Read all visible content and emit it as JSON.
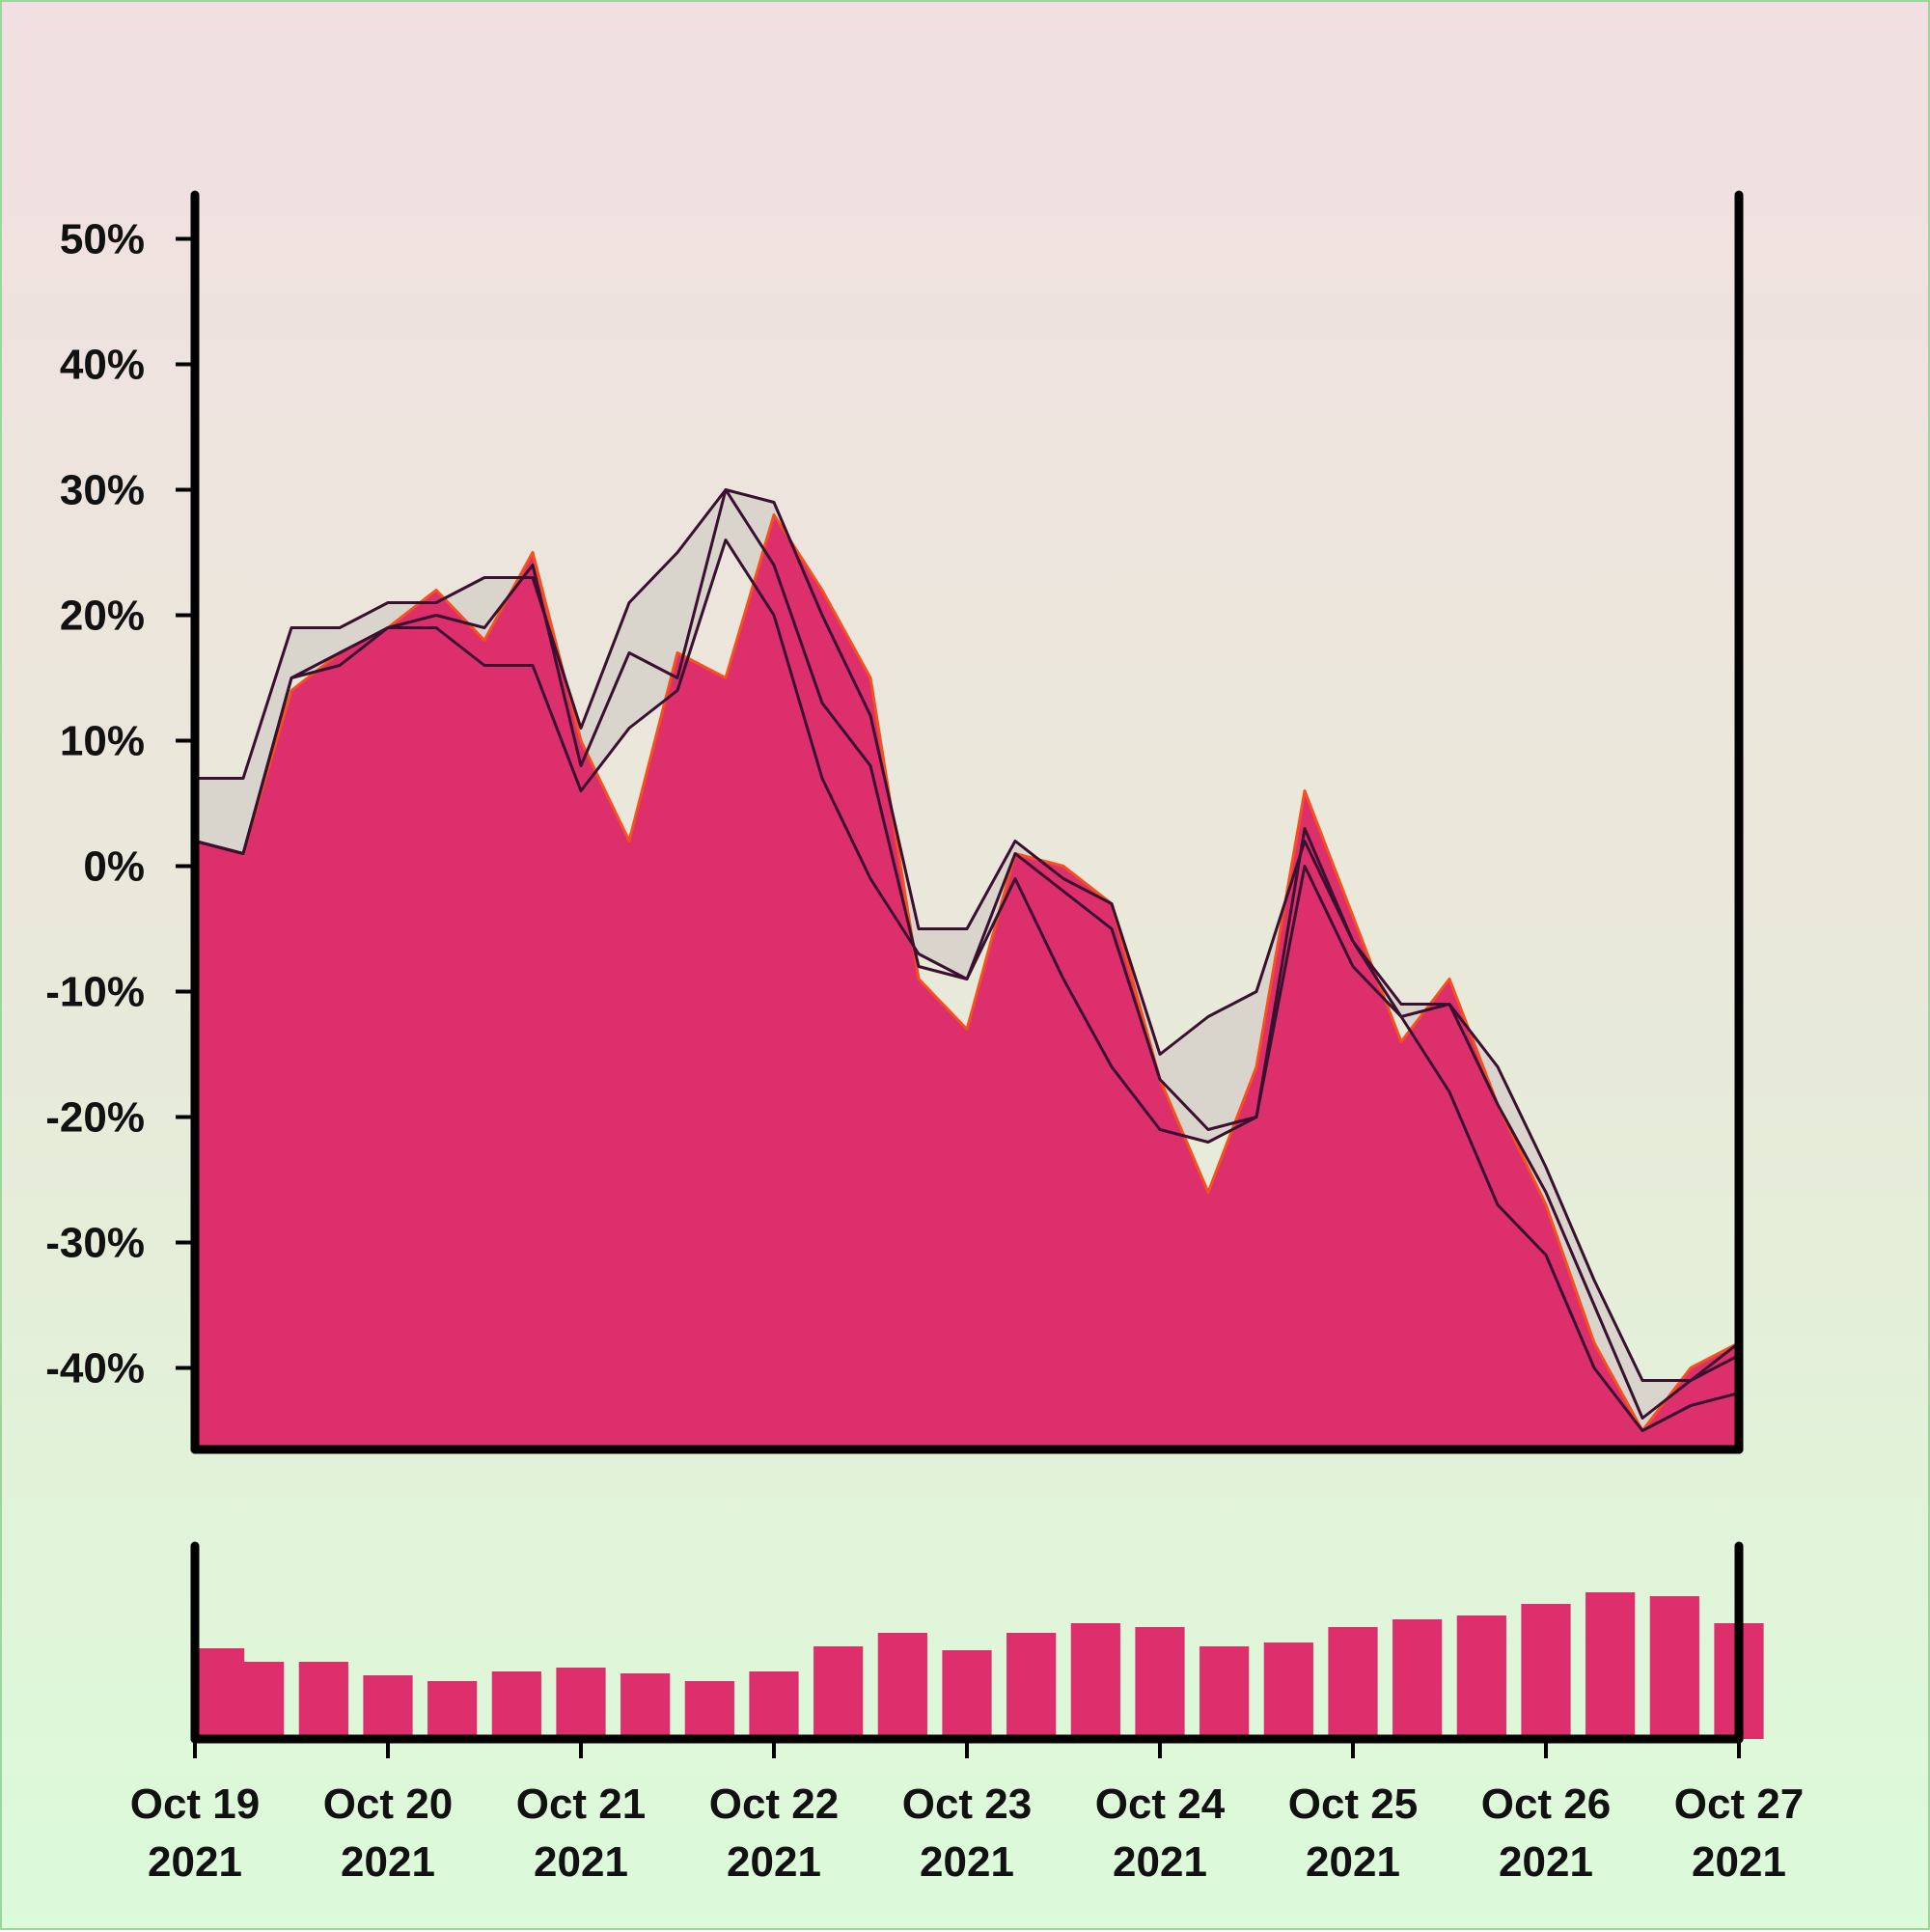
{
  "chart_data": [
    {
      "type": "area",
      "panel": "price",
      "title": "",
      "xlabel": "",
      "ylabel": "",
      "x_range": [
        "2021-10-19",
        "2021-10-27"
      ],
      "ylim": [
        -46.5,
        53.5
      ],
      "y_ticks": [
        50,
        40,
        30,
        20,
        10,
        0,
        -10,
        -20,
        -30,
        -40
      ],
      "y_tick_labels": [
        "50%",
        "40%",
        "30%",
        "20%",
        "10%",
        "0%",
        "-10%",
        "-20%",
        "-30%",
        "-40%"
      ],
      "grid": false,
      "legend": "none",
      "series": [
        {
          "role": "cumulative return (area)",
          "x": [
            "2021-10-19 00:00",
            "2021-10-19 06:00",
            "2021-10-19 12:00",
            "2021-10-19 18:00",
            "2021-10-20 00:00",
            "2021-10-20 06:00",
            "2021-10-20 12:00",
            "2021-10-20 18:00",
            "2021-10-21 00:00",
            "2021-10-21 06:00",
            "2021-10-21 12:00",
            "2021-10-21 18:00",
            "2021-10-22 00:00",
            "2021-10-22 06:00",
            "2021-10-22 12:00",
            "2021-10-22 18:00",
            "2021-10-23 00:00",
            "2021-10-23 06:00",
            "2021-10-23 12:00",
            "2021-10-23 18:00",
            "2021-10-24 00:00",
            "2021-10-24 06:00",
            "2021-10-24 12:00",
            "2021-10-24 18:00",
            "2021-10-25 00:00",
            "2021-10-25 06:00",
            "2021-10-25 12:00",
            "2021-10-25 18:00",
            "2021-10-26 00:00",
            "2021-10-26 06:00",
            "2021-10-26 12:00",
            "2021-10-26 18:00",
            "2021-10-27 00:00"
          ],
          "values": [
            2,
            1,
            14,
            17,
            19,
            22,
            18,
            25,
            10,
            2,
            17,
            15,
            28,
            22,
            15,
            -9,
            -13,
            1,
            0,
            -3,
            -17,
            -26,
            -16,
            6,
            -4,
            -14,
            -9,
            -19,
            -27,
            -38,
            -45,
            -40,
            -38
          ]
        },
        {
          "role": "upper band",
          "x": [
            "2021-10-19 00:00",
            "2021-10-19 06:00",
            "2021-10-19 12:00",
            "2021-10-19 18:00",
            "2021-10-20 00:00",
            "2021-10-20 06:00",
            "2021-10-20 12:00",
            "2021-10-20 18:00",
            "2021-10-21 00:00",
            "2021-10-21 06:00",
            "2021-10-21 12:00",
            "2021-10-21 18:00",
            "2021-10-22 00:00",
            "2021-10-22 06:00",
            "2021-10-22 12:00",
            "2021-10-22 18:00",
            "2021-10-23 00:00",
            "2021-10-23 06:00",
            "2021-10-23 12:00",
            "2021-10-23 18:00",
            "2021-10-24 00:00",
            "2021-10-24 06:00",
            "2021-10-24 12:00",
            "2021-10-24 18:00",
            "2021-10-25 00:00",
            "2021-10-25 06:00",
            "2021-10-25 12:00",
            "2021-10-25 18:00",
            "2021-10-26 00:00",
            "2021-10-26 06:00",
            "2021-10-26 12:00",
            "2021-10-26 18:00",
            "2021-10-27 00:00"
          ],
          "values": [
            7,
            7,
            19,
            19,
            21,
            21,
            23,
            23,
            11,
            21,
            25,
            30,
            29,
            20,
            12,
            -5,
            -5,
            2,
            -1,
            -3,
            -15,
            -12,
            -10,
            2,
            -6,
            -11,
            -11,
            -16,
            -24,
            -33,
            -41,
            -41,
            -38
          ]
        },
        {
          "role": "lower band",
          "x": [
            "2021-10-19 00:00",
            "2021-10-19 06:00",
            "2021-10-19 12:00",
            "2021-10-19 18:00",
            "2021-10-20 00:00",
            "2021-10-20 06:00",
            "2021-10-20 12:00",
            "2021-10-20 18:00",
            "2021-10-21 00:00",
            "2021-10-21 06:00",
            "2021-10-21 12:00",
            "2021-10-21 18:00",
            "2021-10-22 00:00",
            "2021-10-22 06:00",
            "2021-10-22 12:00",
            "2021-10-22 18:00",
            "2021-10-23 00:00",
            "2021-10-23 06:00",
            "2021-10-23 12:00",
            "2021-10-23 18:00",
            "2021-10-24 00:00",
            "2021-10-24 06:00",
            "2021-10-24 12:00",
            "2021-10-24 18:00",
            "2021-10-25 00:00",
            "2021-10-25 06:00",
            "2021-10-25 12:00",
            "2021-10-25 18:00",
            "2021-10-26 00:00",
            "2021-10-26 06:00",
            "2021-10-26 12:00",
            "2021-10-26 18:00",
            "2021-10-27 00:00"
          ],
          "values": [
            2,
            1,
            15,
            16,
            19,
            19,
            16,
            16,
            6,
            11,
            14,
            26,
            20,
            7,
            -1,
            -7,
            -9,
            -1,
            -9,
            -16,
            -21,
            -22,
            -20,
            0,
            -8,
            -12,
            -18,
            -27,
            -31,
            -40,
            -45,
            -43,
            -42
          ]
        },
        {
          "role": "moving average",
          "x": [
            "2021-10-19 00:00",
            "2021-10-19 06:00",
            "2021-10-19 12:00",
            "2021-10-19 18:00",
            "2021-10-20 00:00",
            "2021-10-20 06:00",
            "2021-10-20 12:00",
            "2021-10-20 18:00",
            "2021-10-21 00:00",
            "2021-10-21 06:00",
            "2021-10-21 12:00",
            "2021-10-21 18:00",
            "2021-10-22 00:00",
            "2021-10-22 06:00",
            "2021-10-22 12:00",
            "2021-10-22 18:00",
            "2021-10-23 00:00",
            "2021-10-23 06:00",
            "2021-10-23 12:00",
            "2021-10-23 18:00",
            "2021-10-24 00:00",
            "2021-10-24 06:00",
            "2021-10-24 12:00",
            "2021-10-24 18:00",
            "2021-10-25 00:00",
            "2021-10-25 06:00",
            "2021-10-25 12:00",
            "2021-10-25 18:00",
            "2021-10-26 00:00",
            "2021-10-26 06:00",
            "2021-10-26 12:00",
            "2021-10-26 18:00",
            "2021-10-27 00:00"
          ],
          "values": [
            2,
            1,
            15,
            17,
            19,
            20,
            19,
            24,
            8,
            17,
            15,
            30,
            24,
            13,
            8,
            -8,
            -9,
            1,
            -2,
            -5,
            -17,
            -21,
            -20,
            3,
            -6,
            -12,
            -11,
            -19,
            -26,
            -35,
            -44,
            -41,
            -39
          ]
        }
      ]
    },
    {
      "type": "bar",
      "panel": "volume",
      "title": "",
      "xlabel": "",
      "ylabel": "",
      "x_range": [
        "2021-10-19",
        "2021-10-27"
      ],
      "ylim": [
        0,
        1
      ],
      "note_values": "relative volume, no axis printed",
      "x": [
        "2021-10-19 00:00",
        "2021-10-19 08:00",
        "2021-10-19 16:00",
        "2021-10-20 00:00",
        "2021-10-20 08:00",
        "2021-10-20 16:00",
        "2021-10-21 00:00",
        "2021-10-21 08:00",
        "2021-10-21 16:00",
        "2021-10-22 00:00",
        "2021-10-22 08:00",
        "2021-10-22 16:00",
        "2021-10-23 00:00",
        "2021-10-23 08:00",
        "2021-10-23 16:00",
        "2021-10-24 00:00",
        "2021-10-24 08:00",
        "2021-10-24 16:00",
        "2021-10-25 00:00",
        "2021-10-25 08:00",
        "2021-10-25 16:00",
        "2021-10-26 00:00",
        "2021-10-26 08:00",
        "2021-10-26 16:00",
        "2021-10-27 00:00"
      ],
      "values": [
        0.47,
        0.4,
        0.4,
        0.33,
        0.3,
        0.35,
        0.37,
        0.34,
        0.3,
        0.35,
        0.48,
        0.55,
        0.46,
        0.55,
        0.6,
        0.58,
        0.48,
        0.5,
        0.58,
        0.62,
        0.64,
        0.7,
        0.76,
        0.74,
        0.6
      ]
    }
  ],
  "x_axis": {
    "ticks": [
      {
        "line1": "Oct 19",
        "line2": "2021"
      },
      {
        "line1": "Oct 20",
        "line2": "2021"
      },
      {
        "line1": "Oct 21",
        "line2": "2021"
      },
      {
        "line1": "Oct 22",
        "line2": "2021"
      },
      {
        "line1": "Oct 23",
        "line2": "2021"
      },
      {
        "line1": "Oct 24",
        "line2": "2021"
      },
      {
        "line1": "Oct 25",
        "line2": "2021"
      },
      {
        "line1": "Oct 26",
        "line2": "2021"
      },
      {
        "line1": "Oct 27",
        "line2": "2021"
      }
    ]
  },
  "colors": {
    "area_fill": "#dc2f6b",
    "noise_line": "#f4511e",
    "band_fill": "#d9d4cc",
    "band_line": "#3a1030",
    "volume_bar": "#dc2f6b",
    "axis": "#000000",
    "text": "#111111"
  }
}
